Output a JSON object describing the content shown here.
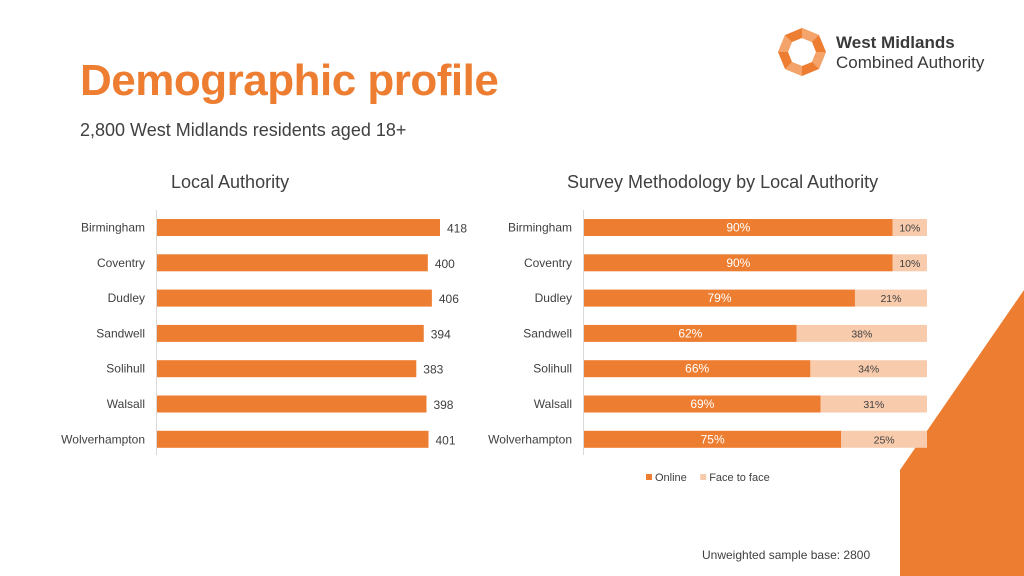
{
  "header": {
    "title": "Demographic profile",
    "subtitle": "2,800 West Midlands residents aged 18+"
  },
  "logo": {
    "line1": "West Midlands",
    "line2": "Combined Authority"
  },
  "footnote": "Unweighted sample base: 2800",
  "colors": {
    "accent": "#ED7D31",
    "light": "#F8CBAD",
    "text": "#404040"
  },
  "chart_data": [
    {
      "type": "bar",
      "orientation": "horizontal",
      "title": "Local Authority",
      "categories": [
        "Birmingham",
        "Coventry",
        "Dudley",
        "Sandwell",
        "Solihull",
        "Walsall",
        "Wolverhampton"
      ],
      "values": [
        418,
        400,
        406,
        394,
        383,
        398,
        401
      ],
      "xlim": [
        0,
        430
      ],
      "grid": false,
      "legend": "none"
    },
    {
      "type": "bar",
      "orientation": "horizontal",
      "stacked": true,
      "title": "Survey Methodology by Local Authority",
      "categories": [
        "Birmingham",
        "Coventry",
        "Dudley",
        "Sandwell",
        "Solihull",
        "Walsall",
        "Wolverhampton"
      ],
      "series": [
        {
          "name": "Online",
          "values": [
            90,
            90,
            79,
            62,
            66,
            69,
            75
          ],
          "labels": [
            "90%",
            "90%",
            "79%",
            "62%",
            "66%",
            "69%",
            "75%"
          ]
        },
        {
          "name": "Face to face",
          "values": [
            10,
            10,
            21,
            38,
            34,
            31,
            25
          ],
          "labels": [
            "10%",
            "10%",
            "21%",
            "38%",
            "34%",
            "31%",
            "25%"
          ]
        }
      ],
      "xlim": [
        0,
        100
      ],
      "grid": false,
      "legend": "bottom"
    }
  ]
}
